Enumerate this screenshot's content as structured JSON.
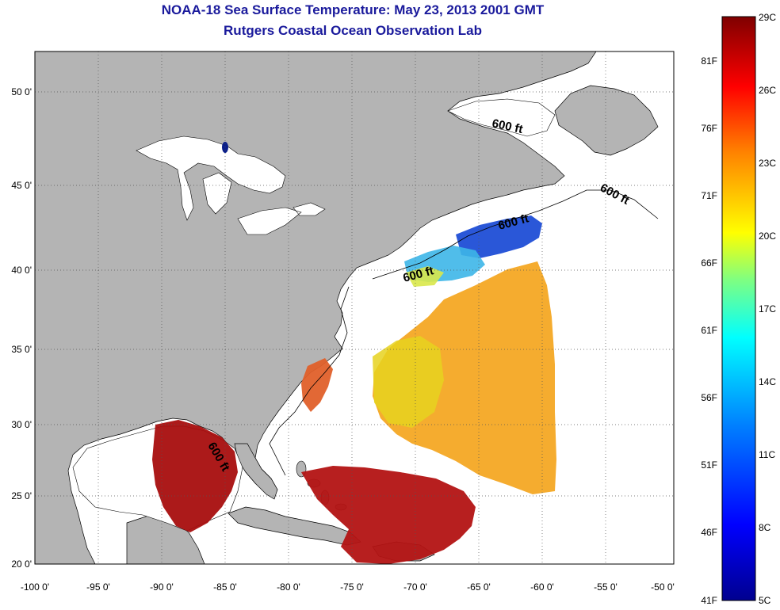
{
  "header": {
    "title": "NOAA-18 Sea Surface Temperature:  May 23, 2013 2001 GMT",
    "subtitle": "Rutgers Coastal Ocean Observation Lab"
  },
  "map": {
    "lon_ticks": [
      "-100 0'",
      "-95 0'",
      "-90 0'",
      "-85 0'",
      "-80 0'",
      "-75 0'",
      "-70 0'",
      "-65 0'",
      "-60 0'",
      "-55 0'",
      "-50 0'"
    ],
    "lat_ticks": [
      "50 0'",
      "45 0'",
      "40 0'",
      "35 0'",
      "30 0'",
      "25 0'",
      "20 0'"
    ],
    "isobath_label": "600 ft",
    "colors": {
      "land": "#b4b4b4",
      "water_no_data": "#ffffff",
      "grid": "#000000"
    }
  },
  "colorbar": {
    "celsius_labels": [
      "29C",
      "26C",
      "23C",
      "20C",
      "17C",
      "14C",
      "11C",
      "8C",
      "5C"
    ],
    "fahrenheit_labels": [
      "81F",
      "76F",
      "71F",
      "66F",
      "61F",
      "56F",
      "51F",
      "46F",
      "41F"
    ],
    "colors": [
      "#7f0000",
      "#ff0000",
      "#ff8000",
      "#ffff00",
      "#80ff80",
      "#00ffff",
      "#0080ff",
      "#0000ff",
      "#00008f"
    ]
  }
}
